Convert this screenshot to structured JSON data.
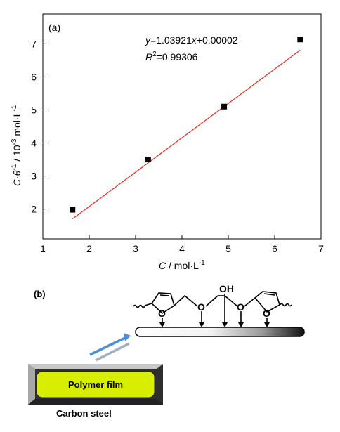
{
  "chart_data": {
    "type": "scatter",
    "panel_label": "(a)",
    "xlabel": "C / mol·L",
    "xlabel_sup": "-1",
    "ylabel": "C·θ / 10 mol·L",
    "ylabel_sup1": "-1",
    "ylabel_sup2": "-3",
    "ylabel_sup3": "-1",
    "xlim": [
      1,
      7
    ],
    "ylim": [
      1.1,
      7.9
    ],
    "xticks": [
      1,
      2,
      3,
      4,
      5,
      6,
      7
    ],
    "yticks": [
      2,
      3,
      4,
      5,
      6,
      7
    ],
    "grid": false,
    "series": [
      {
        "marker": "square",
        "color": "#000000",
        "points": [
          {
            "x": 1.64,
            "y": 1.98
          },
          {
            "x": 3.27,
            "y": 3.5
          },
          {
            "x": 4.91,
            "y": 5.1
          },
          {
            "x": 6.55,
            "y": 7.13
          }
        ]
      }
    ],
    "fit": {
      "slope": 1.03921,
      "intercept": 2e-05,
      "x_range": [
        1.64,
        6.55
      ],
      "color": "#e8261c",
      "equation_text": "y=1.03921x+0.00002",
      "r2_text": "=0.99306"
    }
  },
  "panel_b": {
    "label": "(b)",
    "film_label": "Polymer film",
    "substrate_label": "Carbon steel",
    "hydroxyl_label": "OH",
    "atom_o": "O"
  }
}
